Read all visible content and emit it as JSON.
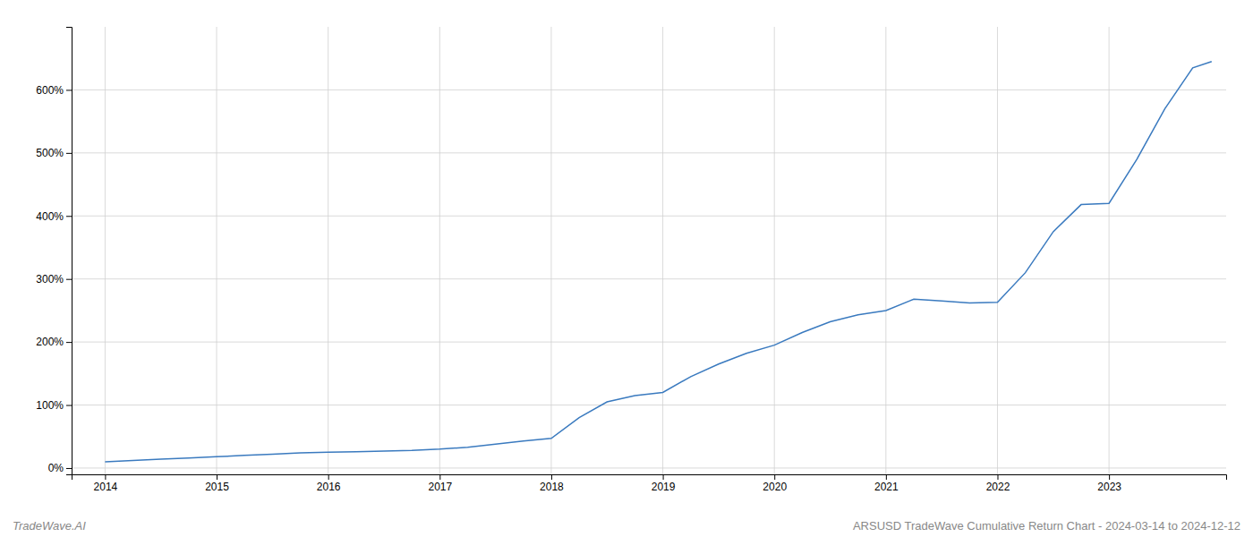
{
  "chart_data": {
    "type": "line",
    "annotations": [
      "TradeWave.AI",
      "ARSUSD TradeWave Cumulative Return Chart - 2024-03-14 to 2024-12-12"
    ],
    "x": [
      2014.0,
      2014.25,
      2014.5,
      2014.75,
      2015.0,
      2015.25,
      2015.5,
      2015.75,
      2016.0,
      2016.25,
      2016.5,
      2016.75,
      2017.0,
      2017.25,
      2017.5,
      2017.75,
      2018.0,
      2018.25,
      2018.5,
      2018.75,
      2019.0,
      2019.25,
      2019.5,
      2019.75,
      2020.0,
      2020.25,
      2020.5,
      2020.75,
      2021.0,
      2021.25,
      2021.5,
      2021.75,
      2022.0,
      2022.25,
      2022.5,
      2022.75,
      2023.0,
      2023.25,
      2023.5,
      2023.75,
      2023.92
    ],
    "values": [
      10,
      12,
      14,
      16,
      18,
      20,
      22,
      24,
      25,
      26,
      27,
      28,
      30,
      33,
      38,
      43,
      47,
      80,
      105,
      115,
      120,
      145,
      165,
      182,
      195,
      215,
      232,
      243,
      250,
      268,
      265,
      262,
      263,
      310,
      375,
      418,
      420,
      490,
      570,
      635,
      645
    ],
    "color": "#3a7abf",
    "xlim": [
      2013.7,
      2024.05
    ],
    "xticks": [
      2014,
      2015,
      2016,
      2017,
      2018,
      2019,
      2020,
      2021,
      2022,
      2023
    ],
    "ylim": [
      -10,
      700
    ],
    "yticks": [
      {
        "value": 0,
        "label": "0%"
      },
      {
        "value": 100,
        "label": "100%"
      },
      {
        "value": 200,
        "label": "200%"
      },
      {
        "value": 300,
        "label": "300%"
      },
      {
        "value": 400,
        "label": "400%"
      },
      {
        "value": 500,
        "label": "500%"
      },
      {
        "value": 600,
        "label": "600%"
      }
    ],
    "grid": true
  }
}
